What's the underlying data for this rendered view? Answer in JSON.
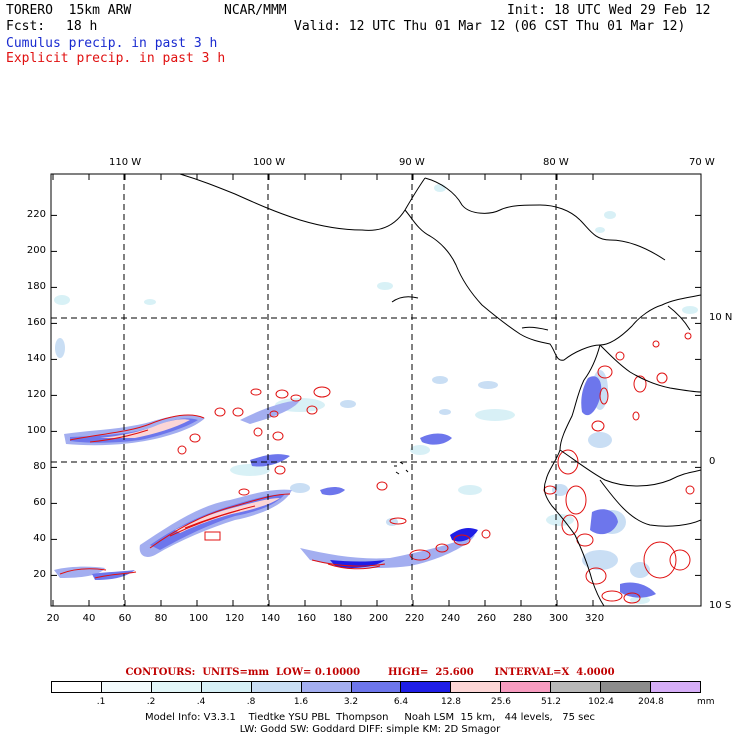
{
  "header": {
    "model": "TORERO  15km ARW",
    "org": "NCAR/MMM",
    "init": "Init: 18 UTC Wed 29 Feb 12",
    "fcst_label": "Fcst:",
    "fcst_hours": "18 h",
    "valid": "Valid: 12 UTC Thu 01 Mar 12 (06 CST Thu 01 Mar 12)",
    "cumulus_label": "Cumulus precip. in past 3 h",
    "explicit_label": "Explicit precip. in past 3 h"
  },
  "colors": {
    "cumulus_title": "#1a2bd0",
    "explicit_title": "#e01010",
    "contour": "#e01010",
    "grid": "#000000",
    "coast": "#000000"
  },
  "map": {
    "lon_labels": [
      "110 W",
      "100 W",
      "90 W",
      "80 W",
      "70 W"
    ],
    "lat_labels": [
      "10 N",
      "0",
      "10 S"
    ],
    "x_ticks": [
      "20",
      "40",
      "60",
      "80",
      "100",
      "120",
      "140",
      "160",
      "180",
      "200",
      "220",
      "240",
      "260",
      "280",
      "300",
      "320"
    ],
    "y_ticks": [
      "20",
      "40",
      "60",
      "80",
      "100",
      "120",
      "140",
      "160",
      "180",
      "200",
      "220"
    ]
  },
  "legend": {
    "contours_text": "CONTOURS:  UNITS=mm  LOW= 0.10000        HIGH=  25.600      INTERVAL=X  4.0000",
    "values": [
      ".1",
      ".2",
      ".4",
      ".8",
      "1.6",
      "3.2",
      "6.4",
      "12.8",
      "25.6",
      "51.2",
      "102.4",
      "204.8"
    ],
    "unit": "mm",
    "colors": [
      "#ffffff",
      "#f2fafc",
      "#e2f6f8",
      "#d6f0f6",
      "#c9def4",
      "#a3aef0",
      "#6d76ec",
      "#1f1ee6",
      "#fcd6d6",
      "#f79cc0",
      "#b8b8b8",
      "#8c8c8c",
      "#d6aef7"
    ]
  },
  "footer": {
    "line1": "Model Info: V3.3.1    Tiedtke YSU PBL  Thompson     Noah LSM  15 km,   44 levels,   75 sec",
    "line2": "LW: Godd SW: Goddard DIFF: simple KM: 2D Smagor"
  }
}
